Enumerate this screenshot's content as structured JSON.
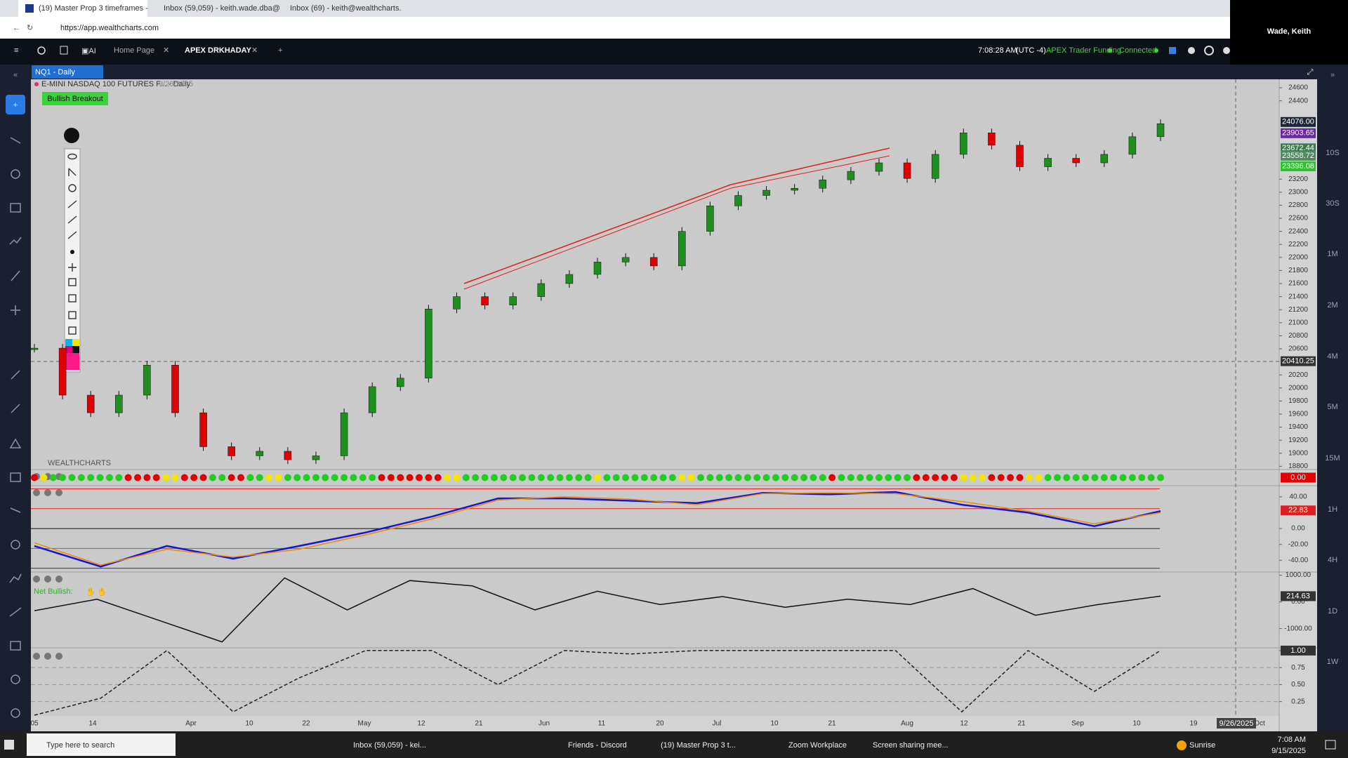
{
  "browser": {
    "tabs": [
      "(19) Master Prop 3 timeframes -",
      "Inbox (59,059) - keith.wade.dba@",
      "Inbox (69) - keith@wealthcharts."
    ],
    "url": "https://app.wealthcharts.com",
    "user": "Wade, Keith"
  },
  "app_header": {
    "tabs": [
      "Home Page",
      "APEX DRKHADAY"
    ],
    "time": "7:08:28 AM",
    "timezone": "(UTC -4)",
    "account": "APEX Trader Funding",
    "status": "Connected"
  },
  "symbol_tab": "NQ1 - Daily",
  "watermark": "WEALTHCHARTS",
  "chart_data": [
    {
      "type": "candlestick",
      "title": "E-MINI NASDAQ 100 FUTURES F... - Daily",
      "subtitle": "9/26/2025",
      "annotation": "Bullish Breakout",
      "values": [
        20610,
        19890,
        19620,
        19890,
        20350,
        19620,
        19100,
        18960,
        19030,
        18900,
        18960,
        19620,
        20020,
        20150,
        21210,
        21400,
        21270,
        21400,
        21600,
        21740,
        21930,
        22000,
        21870,
        22400,
        22790,
        22950,
        23030,
        23060,
        23190,
        23320,
        23450,
        23210,
        23580,
        23910,
        23720,
        23390,
        23520,
        23450,
        23580,
        23850,
        24050
      ],
      "up_color": "#1e8f1e",
      "down_color": "#e00000",
      "ylim": [
        18750,
        24730
      ],
      "yticks": [
        24600,
        24400,
        23200,
        23000,
        22800,
        22600,
        22400,
        22200,
        22000,
        21800,
        21600,
        21400,
        21200,
        21000,
        20800,
        20600,
        20200,
        20000,
        19800,
        19600,
        19400,
        19200,
        19000,
        18800
      ],
      "price_labels": [
        {
          "value": 24076,
          "label": "24076.00",
          "color": "#1b2736"
        },
        {
          "value": 23903.65,
          "label": "23903.65",
          "color": "#6a2a9c"
        },
        {
          "value": 23672.44,
          "label": "23672.44",
          "color": "#3d7a52"
        },
        {
          "value": 23558.72,
          "label": "23558.72",
          "color": "#4f8a62"
        },
        {
          "value": 23396.08,
          "label": "23396.08",
          "color": "#2fbf2f"
        },
        {
          "value": 20410.25,
          "label": "20410.25",
          "color": "#333333"
        }
      ]
    },
    {
      "type": "dots",
      "runs": [
        {
          "color": "#e00000",
          "count": 1
        },
        {
          "color": "#f2e600",
          "count": 1
        },
        {
          "color": "#22cc22",
          "count": 8
        },
        {
          "color": "#e00000",
          "count": 4
        },
        {
          "color": "#f2e600",
          "count": 2
        },
        {
          "color": "#e00000",
          "count": 3
        },
        {
          "color": "#22cc22",
          "count": 2
        },
        {
          "color": "#e00000",
          "count": 2
        },
        {
          "color": "#22cc22",
          "count": 2
        },
        {
          "color": "#f2e600",
          "count": 2
        },
        {
          "color": "#22cc22",
          "count": 10
        },
        {
          "color": "#e00000",
          "count": 7
        },
        {
          "color": "#f2e600",
          "count": 2
        },
        {
          "color": "#22cc22",
          "count": 14
        },
        {
          "color": "#f2e600",
          "count": 1
        },
        {
          "color": "#22cc22",
          "count": 8
        },
        {
          "color": "#f2e600",
          "count": 2
        },
        {
          "color": "#22cc22",
          "count": 14
        },
        {
          "color": "#e00000",
          "count": 1
        },
        {
          "color": "#22cc22",
          "count": 8
        },
        {
          "color": "#e00000",
          "count": 5
        },
        {
          "color": "#f2e600",
          "count": 3
        },
        {
          "color": "#e00000",
          "count": 4
        },
        {
          "color": "#f2e600",
          "count": 2
        },
        {
          "color": "#22cc22",
          "count": 13
        }
      ],
      "last_value": {
        "value": 0,
        "label": "0.00"
      },
      "last_color": "#e00000"
    },
    {
      "type": "line",
      "series": [
        {
          "color": "#1515d8",
          "values": [
            -22,
            -48,
            -22,
            -38,
            -22,
            -5,
            15,
            38,
            38,
            35,
            32,
            45,
            43,
            46,
            30,
            20,
            3,
            22
          ]
        },
        {
          "color": "#f08a00",
          "values": [
            -18,
            -46,
            -26,
            -36,
            -26,
            -8,
            12,
            36,
            40,
            37,
            30,
            44,
            45,
            44,
            34,
            22,
            6,
            20
          ]
        }
      ],
      "ylim": [
        -53,
        54
      ],
      "yticks": [
        {
          "value": 40,
          "label": "40.00"
        },
        {
          "value": 0,
          "label": "0.00"
        },
        {
          "value": -20,
          "label": "-20.00"
        },
        {
          "value": -40,
          "label": "-40.00"
        }
      ],
      "levels": [
        {
          "value": 50,
          "color": "#e02020"
        },
        {
          "value": 25,
          "color": "#e02020"
        },
        {
          "value": 0,
          "color": "#111111"
        },
        {
          "value": -25,
          "color": "#2a8a9a"
        },
        {
          "value": -50,
          "color": "#1a3aa0"
        }
      ],
      "last_value": 22.83,
      "last_color": "#e02020"
    },
    {
      "type": "line",
      "annotation": "Net Bullish:",
      "series": [
        {
          "color": "#111111",
          "values": [
            -330,
            100,
            -700,
            -1500,
            900,
            -300,
            800,
            600,
            -300,
            400,
            -100,
            200,
            -200,
            100,
            -100,
            500,
            -500,
            -100,
            214.63
          ]
        }
      ],
      "ylim": [
        -1720,
        1120
      ],
      "yticks": [
        {
          "value": 1000,
          "label": "1000.00"
        },
        {
          "value": 0,
          "label": "0.00"
        },
        {
          "value": -1000,
          "label": "-1000.00"
        }
      ],
      "last_value": 214.63,
      "last_color": "#333333"
    },
    {
      "type": "line",
      "dashed": true,
      "series": [
        {
          "color": "#222222",
          "values": [
            0.05,
            0.3,
            1.0,
            0.1,
            0.6,
            1.0,
            1.0,
            0.5,
            1.0,
            0.95,
            1.0,
            1.0,
            1.0,
            1.0,
            0.1,
            1.0,
            0.4,
            1.0
          ]
        }
      ],
      "ylim": [
        0.04,
        1.02
      ],
      "yticks": [
        {
          "value": 1,
          "label": "1.00"
        },
        {
          "value": 0.75,
          "label": "0.75"
        },
        {
          "value": 0.5,
          "label": "0.50"
        },
        {
          "value": 0.25,
          "label": "0.25"
        }
      ],
      "last_color": "#333333"
    }
  ],
  "x_axis_labels": [
    "05",
    "14",
    "Apr",
    "10",
    "22",
    "May",
    "12",
    "21",
    "Jun",
    "11",
    "20",
    "Jul",
    "10",
    "21",
    "Aug",
    "12",
    "21",
    "Sep",
    "10",
    "19",
    "Oct"
  ],
  "cursor_date": "9/26/2025",
  "timeframes": [
    "10S",
    "30S",
    "1M",
    "2M",
    "4M",
    "5M",
    "15M",
    "1H",
    "4H",
    "1D",
    "1W"
  ],
  "taskbar": {
    "search": "Type here to search",
    "apps": [
      "Inbox (59,059) - kei...",
      "Friends - Discord",
      "(19) Master Prop 3 t...",
      "Zoom Workplace",
      "Screen sharing mee..."
    ],
    "weather": "Sunrise",
    "time": "7:08 AM",
    "date": "9/15/2025"
  }
}
